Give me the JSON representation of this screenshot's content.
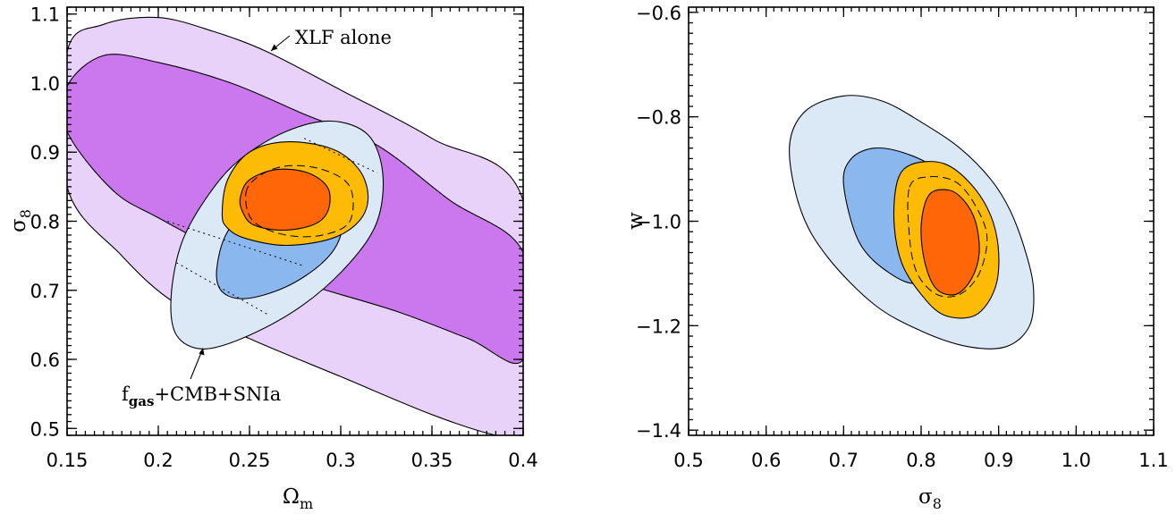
{
  "chart_data": [
    {
      "type": "contour",
      "xlabel": "Ω",
      "xlabel_sub": "m",
      "ylabel": "σ",
      "ylabel_sub": "8",
      "xlim": [
        0.15,
        0.4
      ],
      "ylim": [
        0.49,
        1.11
      ],
      "xticks": [
        0.15,
        0.2,
        0.25,
        0.3,
        0.35,
        0.4
      ],
      "xtick_labels": [
        "0.15",
        "0.2",
        "0.25",
        "0.3",
        "0.35",
        "0.4"
      ],
      "yticks": [
        0.5,
        0.6,
        0.7,
        0.8,
        0.9,
        1.0,
        1.1
      ],
      "ytick_labels": [
        "0.5",
        "0.6",
        "0.7",
        "0.8",
        "0.9",
        "1.0",
        "1.1"
      ],
      "annotations": {
        "xlf": "XLF alone",
        "combo_f": "f",
        "combo_sub": "gas",
        "combo_rest": "+CMB+SNIa"
      },
      "series": [
        {
          "id": "xlf_outer",
          "color": "#e8d2fa",
          "points": [
            [
              0.15,
              1.045
            ],
            [
              0.17,
              1.085
            ],
            [
              0.2,
              1.095
            ],
            [
              0.23,
              1.075
            ],
            [
              0.26,
              1.045
            ],
            [
              0.3,
              0.99
            ],
            [
              0.35,
              0.92
            ],
            [
              0.4,
              0.83
            ],
            [
              0.4,
              0.49
            ],
            [
              0.385,
              0.49
            ],
            [
              0.35,
              0.52
            ],
            [
              0.3,
              0.575
            ],
            [
              0.25,
              0.63
            ],
            [
              0.21,
              0.68
            ],
            [
              0.18,
              0.75
            ],
            [
              0.15,
              0.85
            ]
          ]
        },
        {
          "id": "xlf_inner",
          "color": "#cb78ee",
          "points": [
            [
              0.15,
              0.995
            ],
            [
              0.17,
              1.04
            ],
            [
              0.2,
              1.03
            ],
            [
              0.24,
              1.0
            ],
            [
              0.28,
              0.955
            ],
            [
              0.32,
              0.91
            ],
            [
              0.36,
              0.83
            ],
            [
              0.4,
              0.755
            ],
            [
              0.4,
              0.6
            ],
            [
              0.37,
              0.63
            ],
            [
              0.33,
              0.67
            ],
            [
              0.28,
              0.71
            ],
            [
              0.24,
              0.75
            ],
            [
              0.2,
              0.805
            ],
            [
              0.175,
              0.845
            ],
            [
              0.15,
              0.93
            ]
          ]
        },
        {
          "id": "combo_outer",
          "color": "#dbe9f7",
          "points": [
            [
              0.207,
              0.69
            ],
            [
              0.213,
              0.77
            ],
            [
              0.228,
              0.84
            ],
            [
              0.245,
              0.89
            ],
            [
              0.27,
              0.93
            ],
            [
              0.295,
              0.945
            ],
            [
              0.315,
              0.925
            ],
            [
              0.323,
              0.87
            ],
            [
              0.32,
              0.8
            ],
            [
              0.305,
              0.74
            ],
            [
              0.28,
              0.68
            ],
            [
              0.25,
              0.635
            ],
            [
              0.225,
              0.615
            ],
            [
              0.21,
              0.635
            ]
          ]
        },
        {
          "id": "combo_inner",
          "color": "#8bb7ef",
          "points": [
            [
              0.232,
              0.73
            ],
            [
              0.238,
              0.785
            ],
            [
              0.255,
              0.83
            ],
            [
              0.28,
              0.85
            ],
            [
              0.3,
              0.835
            ],
            [
              0.3,
              0.78
            ],
            [
              0.29,
              0.74
            ],
            [
              0.27,
              0.705
            ],
            [
              0.248,
              0.688
            ],
            [
              0.235,
              0.698
            ]
          ]
        },
        {
          "id": "tight_outer",
          "color": "#fdbb05",
          "points": [
            [
              0.235,
              0.81
            ],
            [
              0.238,
              0.86
            ],
            [
              0.25,
              0.9
            ],
            [
              0.27,
              0.915
            ],
            [
              0.295,
              0.905
            ],
            [
              0.31,
              0.875
            ],
            [
              0.315,
              0.835
            ],
            [
              0.31,
              0.8
            ],
            [
              0.295,
              0.775
            ],
            [
              0.27,
              0.765
            ],
            [
              0.248,
              0.775
            ],
            [
              0.238,
              0.79
            ]
          ]
        },
        {
          "id": "tight_inner",
          "color": "#ff6608",
          "points": [
            [
              0.245,
              0.835
            ],
            [
              0.25,
              0.86
            ],
            [
              0.265,
              0.875
            ],
            [
              0.282,
              0.87
            ],
            [
              0.293,
              0.848
            ],
            [
              0.293,
              0.815
            ],
            [
              0.285,
              0.795
            ],
            [
              0.268,
              0.787
            ],
            [
              0.252,
              0.795
            ],
            [
              0.246,
              0.815
            ]
          ]
        }
      ],
      "dashed": [
        {
          "id": "dash_ellipse",
          "points": [
            [
              0.248,
              0.84
            ],
            [
              0.255,
              0.865
            ],
            [
              0.27,
              0.88
            ],
            [
              0.29,
              0.875
            ],
            [
              0.305,
              0.85
            ],
            [
              0.305,
              0.8
            ],
            [
              0.29,
              0.78
            ],
            [
              0.27,
              0.78
            ],
            [
              0.252,
              0.8
            ]
          ]
        }
      ],
      "dotted": [
        {
          "id": "dot_upper",
          "points": [
            [
              0.28,
              0.92
            ],
            [
              0.32,
              0.87
            ]
          ]
        },
        {
          "id": "dot_lower1",
          "points": [
            [
              0.205,
              0.8
            ],
            [
              0.28,
              0.735
            ]
          ]
        },
        {
          "id": "dot_lower2",
          "points": [
            [
              0.21,
              0.74
            ],
            [
              0.26,
              0.665
            ]
          ]
        }
      ]
    },
    {
      "type": "contour",
      "xlabel": "σ",
      "xlabel_sub": "8",
      "ylabel": "w",
      "xlim": [
        0.5,
        1.1
      ],
      "ylim": [
        -1.41,
        -0.59
      ],
      "xticks": [
        0.5,
        0.6,
        0.7,
        0.8,
        0.9,
        1.0,
        1.1
      ],
      "xtick_labels": [
        "0.5",
        "0.6",
        "0.7",
        "0.8",
        "0.9",
        "1.0",
        "1.1"
      ],
      "yticks": [
        -1.4,
        -1.2,
        -1.0,
        -0.8,
        -0.6
      ],
      "ytick_labels": [
        "−1.4",
        "−1.2",
        "−1.0",
        "−0.8",
        "−0.6"
      ],
      "series": [
        {
          "id": "outer",
          "color": "#dbe9f7",
          "points": [
            [
              0.63,
              -0.86
            ],
            [
              0.65,
              -0.79
            ],
            [
              0.7,
              -0.76
            ],
            [
              0.75,
              -0.77
            ],
            [
              0.8,
              -0.81
            ],
            [
              0.85,
              -0.86
            ],
            [
              0.89,
              -0.92
            ],
            [
              0.915,
              -0.98
            ],
            [
              0.935,
              -1.06
            ],
            [
              0.945,
              -1.13
            ],
            [
              0.94,
              -1.2
            ],
            [
              0.91,
              -1.24
            ],
            [
              0.86,
              -1.24
            ],
            [
              0.8,
              -1.21
            ],
            [
              0.74,
              -1.16
            ],
            [
              0.68,
              -1.07
            ],
            [
              0.645,
              -0.98
            ]
          ]
        },
        {
          "id": "middle",
          "color": "#8bb7ef",
          "points": [
            [
              0.7,
              -0.93
            ],
            [
              0.71,
              -0.88
            ],
            [
              0.74,
              -0.86
            ],
            [
              0.78,
              -0.87
            ],
            [
              0.82,
              -0.9
            ],
            [
              0.85,
              -0.95
            ],
            [
              0.87,
              -1.02
            ],
            [
              0.85,
              -1.09
            ],
            [
              0.8,
              -1.12
            ],
            [
              0.76,
              -1.1
            ],
            [
              0.72,
              -1.04
            ]
          ]
        },
        {
          "id": "orange_outer",
          "color": "#fdbb05",
          "points": [
            [
              0.77,
              -0.92
            ],
            [
              0.79,
              -0.89
            ],
            [
              0.83,
              -0.89
            ],
            [
              0.865,
              -0.93
            ],
            [
              0.89,
              -0.99
            ],
            [
              0.9,
              -1.06
            ],
            [
              0.895,
              -1.13
            ],
            [
              0.87,
              -1.18
            ],
            [
              0.83,
              -1.18
            ],
            [
              0.8,
              -1.14
            ],
            [
              0.775,
              -1.08
            ],
            [
              0.765,
              -1.0
            ]
          ]
        },
        {
          "id": "orange_inner",
          "color": "#ff6608",
          "points": [
            [
              0.81,
              -0.95
            ],
            [
              0.835,
              -0.94
            ],
            [
              0.855,
              -0.96
            ],
            [
              0.87,
              -1.0
            ],
            [
              0.875,
              -1.06
            ],
            [
              0.865,
              -1.11
            ],
            [
              0.845,
              -1.14
            ],
            [
              0.82,
              -1.13
            ],
            [
              0.805,
              -1.08
            ],
            [
              0.8,
              -1.01
            ]
          ]
        }
      ],
      "dashed": [
        {
          "id": "dash_ellipse",
          "points": [
            [
              0.785,
              -0.935
            ],
            [
              0.81,
              -0.915
            ],
            [
              0.845,
              -0.925
            ],
            [
              0.87,
              -0.97
            ],
            [
              0.885,
              -1.03
            ],
            [
              0.875,
              -1.1
            ],
            [
              0.85,
              -1.14
            ],
            [
              0.82,
              -1.14
            ],
            [
              0.795,
              -1.1
            ],
            [
              0.785,
              -1.03
            ]
          ]
        }
      ],
      "dotted": []
    }
  ]
}
